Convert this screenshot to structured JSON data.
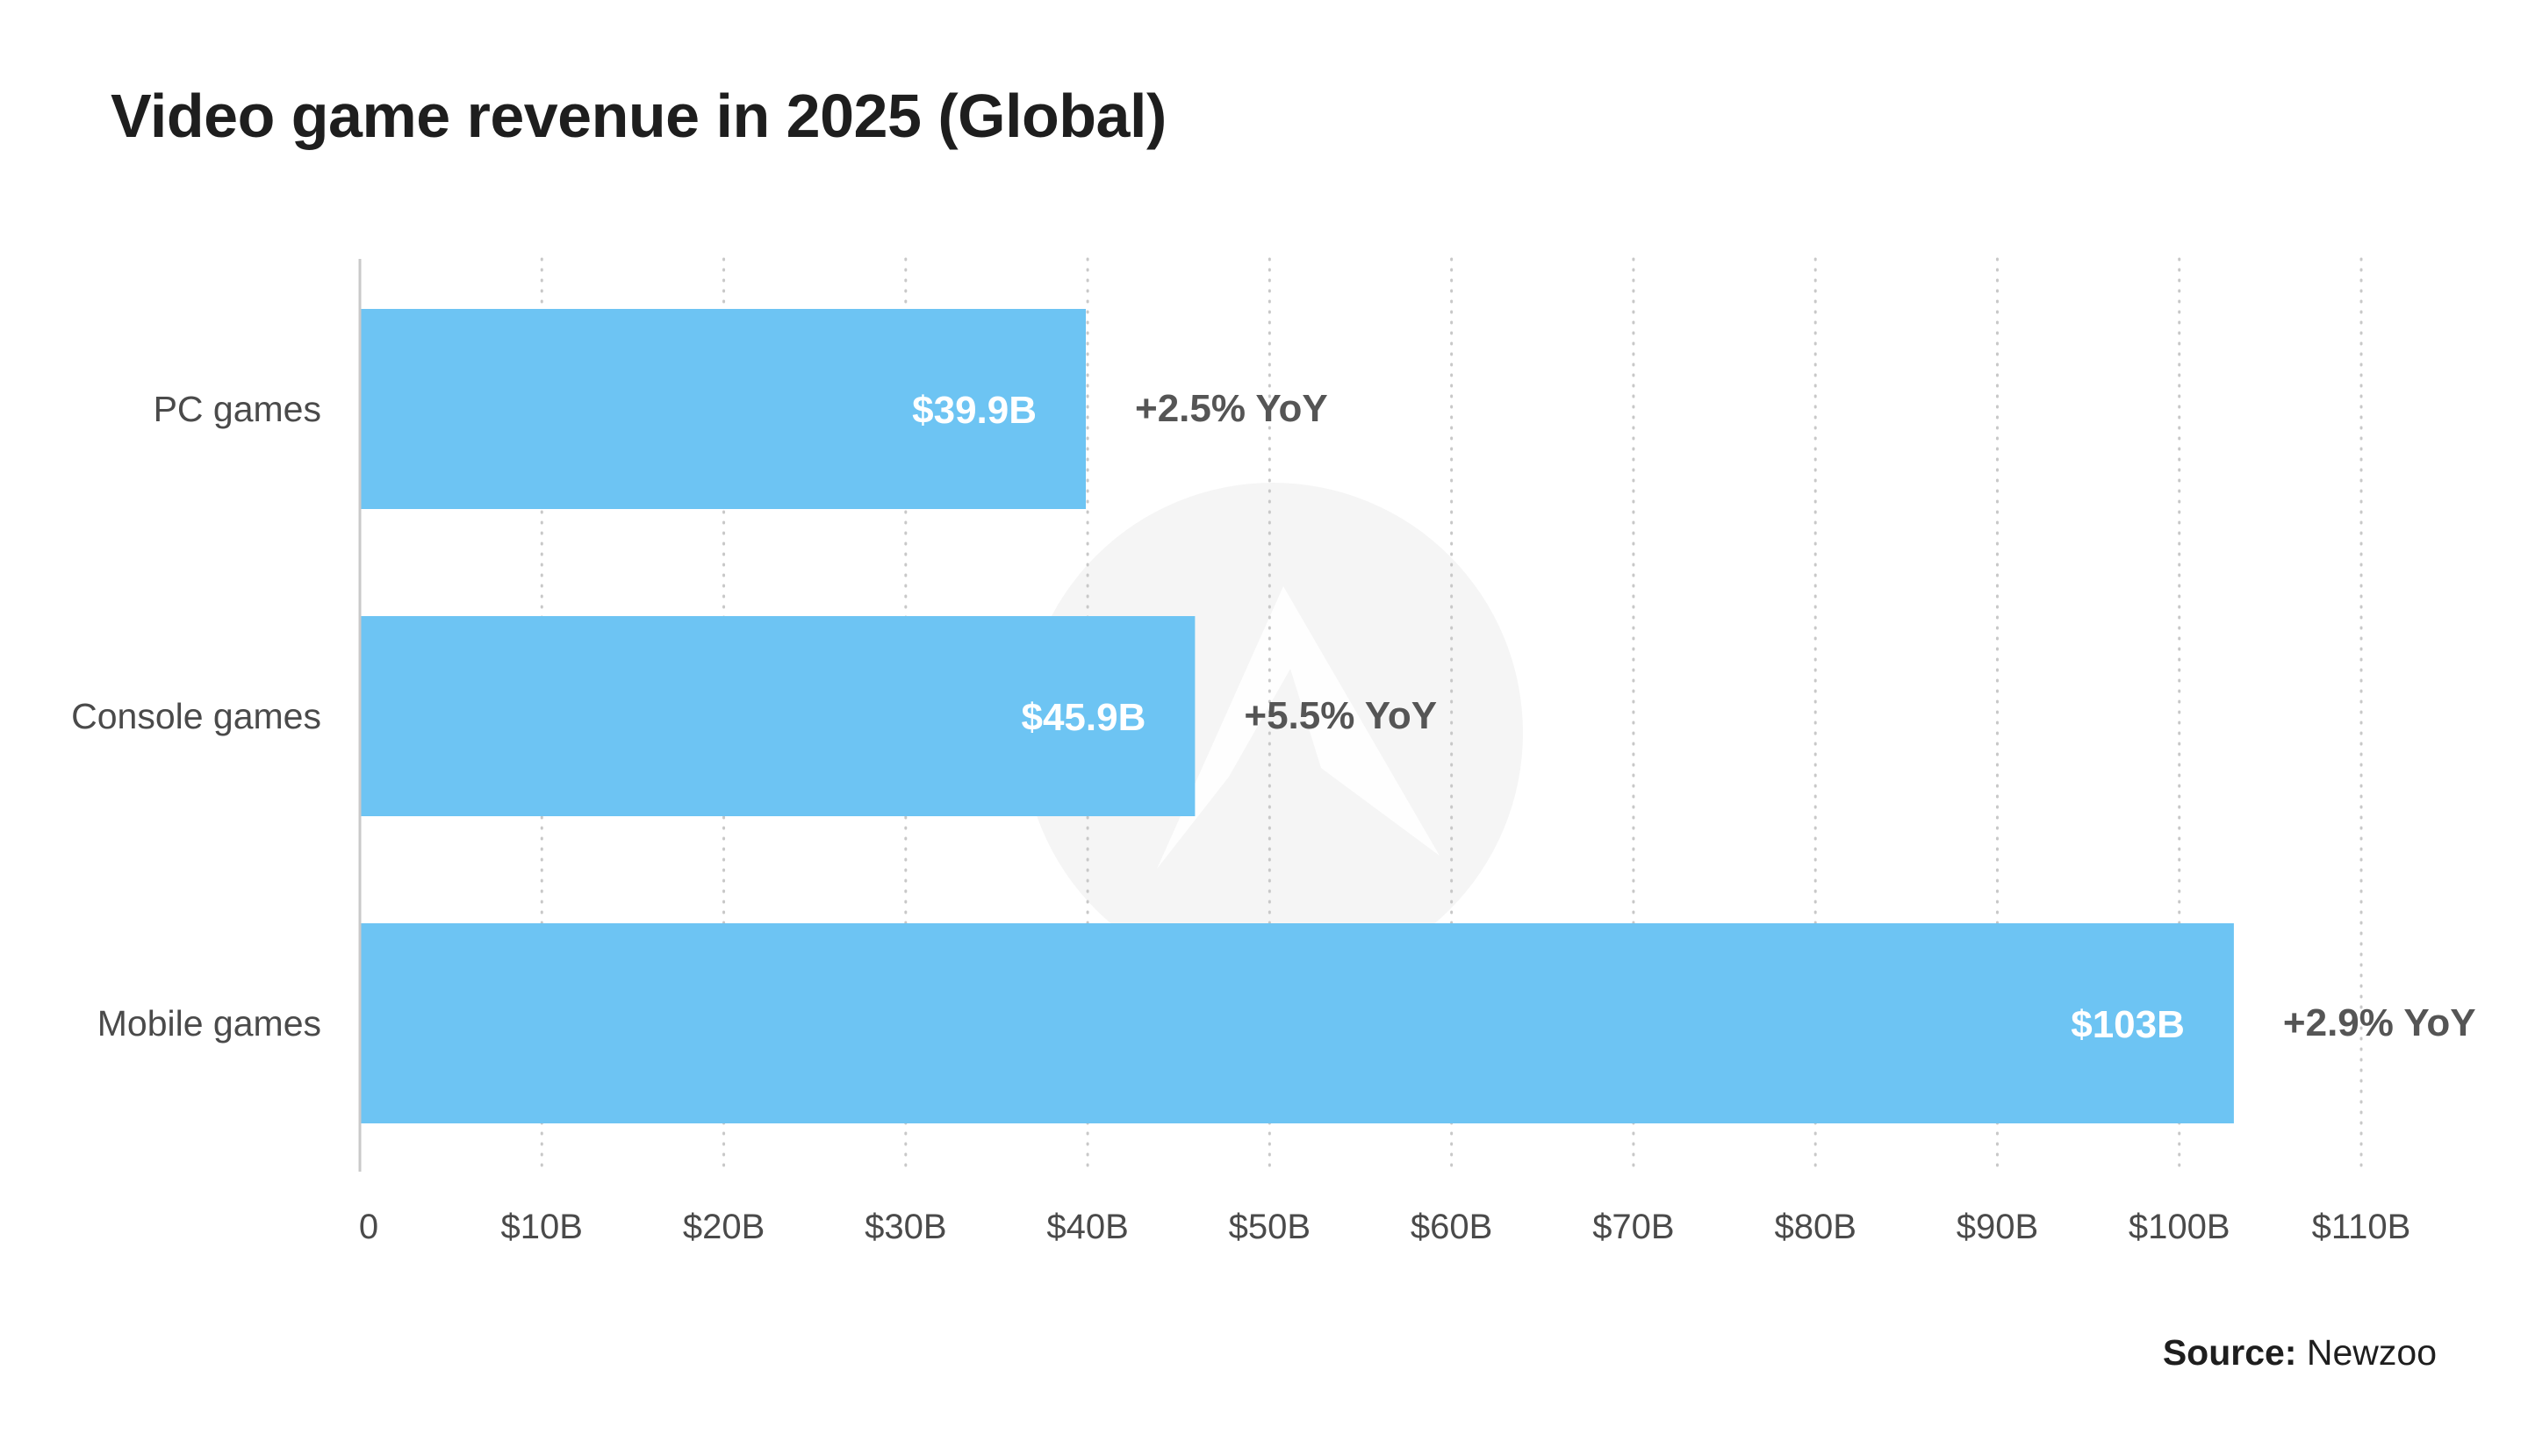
{
  "chart_data": {
    "type": "bar",
    "orientation": "horizontal",
    "title": "Video game revenue in 2025 (Global)",
    "xlabel": "",
    "ylabel": "",
    "categories": [
      "PC games",
      "Console games",
      "Mobile games"
    ],
    "values": [
      39.9,
      45.9,
      103
    ],
    "value_labels": [
      "$39.9B",
      "$45.9B",
      "$103B"
    ],
    "yoy_labels": [
      "+2.5% YoY",
      "+5.5% YoY",
      "+2.9% YoY"
    ],
    "xlim": [
      0,
      110
    ],
    "xticks": [
      0,
      10,
      20,
      30,
      40,
      50,
      60,
      70,
      80,
      90,
      100,
      110
    ],
    "xtick_labels": [
      "0",
      "$10B",
      "$20B",
      "$30B",
      "$40B",
      "$50B",
      "$60B",
      "$70B",
      "$80B",
      "$90B",
      "$100B",
      "$110B"
    ],
    "grid": "vertical dotted",
    "legend": "none",
    "colors": {
      "bar": "#6dc4f3",
      "bar_label": "#ffffff",
      "annotation": "#555555",
      "axis_text": "#4a4a4a",
      "grid": "#c8c8c8",
      "axis_line": "#c9c9c9",
      "watermark": "#f5f5f5"
    }
  },
  "source": {
    "label": "Source:",
    "value": "Newzoo"
  }
}
